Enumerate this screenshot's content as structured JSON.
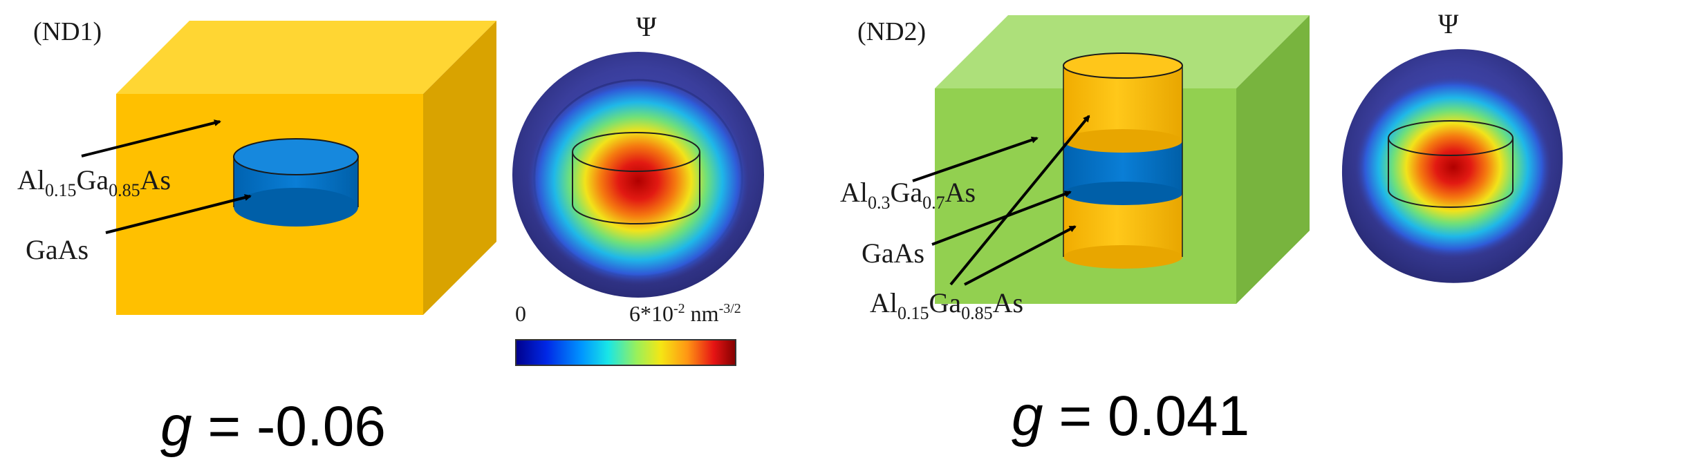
{
  "nd1": {
    "tag": "(ND1)",
    "psi": "Ψ",
    "outer": {
      "base": "Al",
      "x": "0.15",
      "mid": "Ga",
      "y": "0.85",
      "end": "As"
    },
    "dot": "GaAs",
    "g_symbol": "g",
    "g_value": " = -0.06"
  },
  "nd2": {
    "tag": "(ND2)",
    "psi": "Ψ",
    "outer": {
      "base": "Al",
      "x": "0.3",
      "mid": "Ga",
      "y": "0.7",
      "end": "As"
    },
    "dot": "GaAs",
    "barrier": {
      "base": "Al",
      "x": "0.15",
      "mid": "Ga",
      "y": "0.85",
      "end": "As"
    },
    "g_symbol": "g",
    "g_value": " = 0.041"
  },
  "colorbar": {
    "min": "0",
    "max_base": "6*10",
    "max_exp": "-2",
    "unit": " nm",
    "unit_exp": "-3/2"
  },
  "colors": {
    "nd1_box": "#FFC000",
    "nd2_box": "#92D050",
    "gaas": "#0070C0",
    "algaas_cyl": "#FFC000",
    "shell": "#3B3F9E"
  }
}
